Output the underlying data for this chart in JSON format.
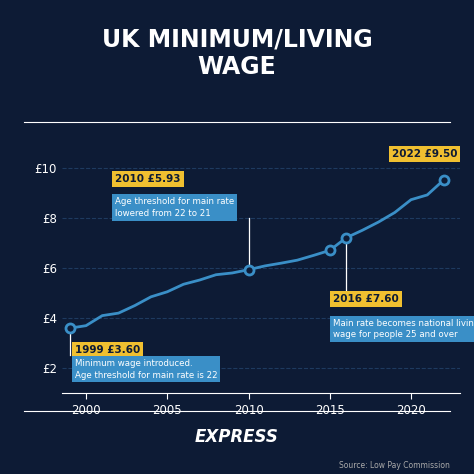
{
  "title": "UK MINIMUM/LIVING\nWAGE",
  "bg_color": "#0d1b35",
  "line_color": "#3a8fc7",
  "grid_color": "#1e3a5f",
  "axis_label_color": "#ffffff",
  "years": [
    1999,
    2000,
    2001,
    2002,
    2003,
    2004,
    2005,
    2006,
    2007,
    2008,
    2009,
    2010,
    2011,
    2012,
    2013,
    2014,
    2015,
    2016,
    2017,
    2018,
    2019,
    2020,
    2021,
    2022
  ],
  "wages": [
    3.6,
    3.7,
    4.1,
    4.2,
    4.5,
    4.85,
    5.05,
    5.35,
    5.52,
    5.73,
    5.8,
    5.93,
    6.08,
    6.19,
    6.31,
    6.5,
    6.7,
    7.2,
    7.5,
    7.83,
    8.21,
    8.72,
    8.91,
    9.5
  ],
  "xlabel_ticks": [
    2000,
    2005,
    2010,
    2015,
    2020
  ],
  "ylabel_ticks": [
    2,
    4,
    6,
    8,
    10
  ],
  "ylabel_labels": [
    "£2",
    "£4",
    "£6",
    "£8",
    "£10"
  ],
  "ylim": [
    1.0,
    11.2
  ],
  "xlim": [
    1998.5,
    2023.0
  ],
  "marker_years": [
    1999,
    2010,
    2015,
    2016,
    2022
  ],
  "footer_text": "EXPRESS",
  "source_text": "Source: Low Pay Commission"
}
